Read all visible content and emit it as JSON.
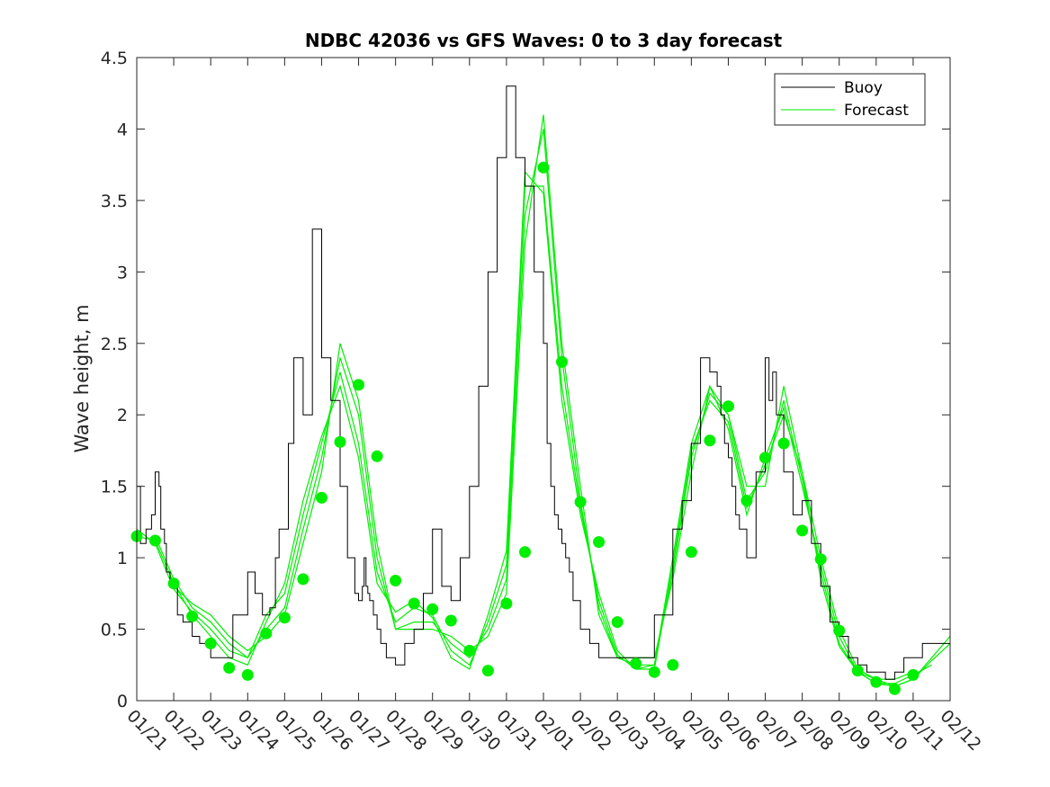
{
  "chart_data": {
    "type": "line",
    "title": "NDBC 42036 vs GFS Waves: 0 to 3 day forecast",
    "xlabel": "",
    "ylabel": "Wave height, m",
    "xlim": [
      0,
      22
    ],
    "ylim": [
      0,
      4.5
    ],
    "yticks": [
      0,
      0.5,
      1,
      1.5,
      2,
      2.5,
      3,
      3.5,
      4,
      4.5
    ],
    "ytick_labels": [
      "0",
      "0.5",
      "1",
      "1.5",
      "2",
      "2.5",
      "3",
      "3.5",
      "4",
      "4.5"
    ],
    "xtick_labels": [
      "01/21",
      "01/22",
      "01/23",
      "01/24",
      "01/25",
      "01/26",
      "01/27",
      "01/28",
      "01/29",
      "01/30",
      "01/31",
      "02/01",
      "02/02",
      "02/03",
      "02/04",
      "02/05",
      "02/06",
      "02/07",
      "02/08",
      "02/09",
      "02/10",
      "02/11",
      "02/12"
    ],
    "grid": false,
    "legend_position": "top-right",
    "legend": [
      "Buoy",
      "Forecast"
    ],
    "colors": {
      "buoy": "#000000",
      "forecast": "#00ee00",
      "axis": "#262626"
    },
    "buoy": {
      "name": "Buoy",
      "x": [
        0,
        0.1,
        0.25,
        0.4,
        0.5,
        0.6,
        0.65,
        0.75,
        0.8,
        0.9,
        1.0,
        1.1,
        1.25,
        1.5,
        1.7,
        2.0,
        2.3,
        2.6,
        3.0,
        3.2,
        3.4,
        3.6,
        3.75,
        3.85,
        4.0,
        4.1,
        4.25,
        4.5,
        4.75,
        5.0,
        5.25,
        5.5,
        5.7,
        5.9,
        6.0,
        6.1,
        6.15,
        6.2,
        6.25,
        6.3,
        6.4,
        6.5,
        6.6,
        6.75,
        7.0,
        7.25,
        7.5,
        7.75,
        8.0,
        8.25,
        8.5,
        8.75,
        9.0,
        9.25,
        9.5,
        9.75,
        10.0,
        10.25,
        10.5,
        10.75,
        11.0,
        11.1,
        11.2,
        11.3,
        11.4,
        11.5,
        11.6,
        11.7,
        11.8,
        12.0,
        12.25,
        12.5,
        12.75,
        13.0,
        13.5,
        14.0,
        14.5,
        14.75,
        15.0,
        15.25,
        15.5,
        15.7,
        15.8,
        15.9,
        16.0,
        16.1,
        16.2,
        16.3,
        16.5,
        16.75,
        17.0,
        17.1,
        17.2,
        17.3,
        17.5,
        17.75,
        18.0,
        18.25,
        18.5,
        18.75,
        19.0,
        19.25,
        19.5,
        19.75,
        20.0,
        20.25,
        20.5,
        20.75,
        21.0,
        21.25,
        21.5,
        22.0
      ],
      "y": [
        1.5,
        1.1,
        1.2,
        1.3,
        1.6,
        1.5,
        1.2,
        1.1,
        0.9,
        0.8,
        0.8,
        0.6,
        0.55,
        0.45,
        0.4,
        0.3,
        0.3,
        0.6,
        0.9,
        0.75,
        0.6,
        0.65,
        1.0,
        1.2,
        1.2,
        1.8,
        2.4,
        2.0,
        3.3,
        2.4,
        2.1,
        1.5,
        1.0,
        0.75,
        0.7,
        0.8,
        1.0,
        0.8,
        0.75,
        0.7,
        0.6,
        0.5,
        0.4,
        0.3,
        0.25,
        0.4,
        0.5,
        0.75,
        1.2,
        0.8,
        0.7,
        1.0,
        1.5,
        2.2,
        3.0,
        3.8,
        4.3,
        3.8,
        3.6,
        3.0,
        2.5,
        1.8,
        1.5,
        1.3,
        1.2,
        1.1,
        1.0,
        0.9,
        0.7,
        0.5,
        0.4,
        0.3,
        0.3,
        0.3,
        0.3,
        0.6,
        1.2,
        1.4,
        1.8,
        2.4,
        2.3,
        2.2,
        2.0,
        1.8,
        1.7,
        1.5,
        1.3,
        1.2,
        1.0,
        1.6,
        2.4,
        2.1,
        2.3,
        2.0,
        1.6,
        1.3,
        1.4,
        1.1,
        0.8,
        0.55,
        0.45,
        0.3,
        0.25,
        0.2,
        0.2,
        0.15,
        0.2,
        0.3,
        0.3,
        0.4,
        0.4,
        0.5
      ]
    },
    "forecast": {
      "name": "Forecast",
      "runs": [
        {
          "x": [
            0,
            0.5,
            1,
            1.5,
            2,
            2.5,
            3,
            3.5,
            4,
            4.5,
            5,
            5.5,
            6,
            6.5,
            7,
            7.5,
            8,
            8.5,
            9,
            9.5,
            10,
            10.5,
            11,
            11.5,
            12,
            12.5,
            13,
            13.5,
            14,
            14.5,
            15,
            15.5,
            16,
            16.5,
            17,
            17.5,
            18,
            18.5,
            19,
            19.5,
            20,
            20.5,
            21,
            21.5,
            22
          ],
          "y": [
            1.15,
            1.12,
            0.82,
            0.6,
            0.45,
            0.3,
            0.25,
            0.55,
            0.82,
            1.4,
            1.85,
            2.2,
            1.7,
            0.82,
            0.62,
            0.7,
            0.58,
            0.3,
            0.22,
            0.6,
            1.05,
            3.7,
            3.55,
            2.1,
            1.3,
            0.75,
            0.35,
            0.22,
            0.22,
            0.95,
            1.75,
            2.1,
            1.95,
            1.35,
            1.65,
            2.0,
            1.6,
            1.0,
            0.5,
            0.22,
            0.15,
            0.1,
            0.15,
            0.3,
            0.45
          ]
        },
        {
          "x": [
            0,
            0.5,
            1,
            1.5,
            2,
            2.5,
            3,
            3.5,
            4,
            4.5,
            5,
            5.5,
            6,
            6.5,
            7,
            7.5,
            8,
            8.5,
            9,
            9.5,
            10,
            10.5,
            11,
            11.5,
            12,
            12.5,
            13,
            13.5,
            14,
            14.5,
            15,
            15.5,
            16,
            16.5,
            17,
            17.5,
            18,
            18.5,
            19,
            19.5,
            20,
            20.5,
            21,
            21.5,
            22
          ],
          "y": [
            1.2,
            1.1,
            0.78,
            0.62,
            0.5,
            0.35,
            0.3,
            0.6,
            0.75,
            1.3,
            1.8,
            2.3,
            1.8,
            0.9,
            0.55,
            0.65,
            0.6,
            0.35,
            0.25,
            0.55,
            0.95,
            3.6,
            3.6,
            2.2,
            1.35,
            0.7,
            0.32,
            0.22,
            0.25,
            1.0,
            1.8,
            2.2,
            1.9,
            1.3,
            1.7,
            2.05,
            1.5,
            0.95,
            0.45,
            0.2,
            0.12,
            0.1,
            0.15,
            0.28,
            0.4
          ]
        },
        {
          "x": [
            0.5,
            1,
            1.5,
            2,
            2.5,
            3,
            3.5,
            4,
            4.5,
            5,
            5.5,
            6,
            6.5,
            7,
            7.5,
            8,
            8.5,
            9,
            9.5,
            10,
            10.5,
            11,
            11.5,
            12,
            12.5,
            13,
            13.5,
            14,
            14.5,
            15,
            15.5,
            16,
            16.5,
            17,
            17.5,
            18,
            18.5,
            19,
            19.5,
            20,
            20.5,
            21,
            21.5
          ],
          "y": [
            1.15,
            0.85,
            0.65,
            0.55,
            0.4,
            0.3,
            0.5,
            0.65,
            1.2,
            1.7,
            2.4,
            2.0,
            1.0,
            0.5,
            0.55,
            0.55,
            0.4,
            0.3,
            0.5,
            0.85,
            3.4,
            4.0,
            2.4,
            1.4,
            0.65,
            0.3,
            0.25,
            0.25,
            0.9,
            1.7,
            2.15,
            2.0,
            1.4,
            1.6,
            2.1,
            1.55,
            0.9,
            0.4,
            0.2,
            0.12,
            0.12,
            0.18,
            0.25
          ]
        },
        {
          "x": [
            1,
            1.5,
            2,
            2.5,
            3,
            3.5,
            4,
            4.5,
            5,
            5.5,
            6,
            6.5,
            7,
            7.5,
            8,
            8.5,
            9,
            9.5,
            10,
            10.5,
            11,
            11.5,
            12,
            12.5,
            13,
            13.5,
            14,
            14.5,
            15,
            15.5,
            16,
            16.5,
            17,
            17.5,
            18,
            18.5,
            19,
            19.5,
            20,
            20.5,
            21
          ],
          "y": [
            0.8,
            0.68,
            0.6,
            0.45,
            0.35,
            0.45,
            0.6,
            1.1,
            1.6,
            2.5,
            2.1,
            1.1,
            0.5,
            0.5,
            0.5,
            0.45,
            0.35,
            0.45,
            0.75,
            3.2,
            4.1,
            2.5,
            1.5,
            0.6,
            0.3,
            0.3,
            0.3,
            0.85,
            1.6,
            2.2,
            2.0,
            1.5,
            1.5,
            2.2,
            1.6,
            0.85,
            0.38,
            0.2,
            0.15,
            0.15,
            0.2
          ]
        }
      ],
      "markers": {
        "x": [
          0,
          0.5,
          1,
          1.5,
          2,
          2.5,
          3,
          3.5,
          4,
          4.5,
          5,
          5.5,
          6,
          6.5,
          7,
          7.5,
          8,
          8.5,
          9,
          9.5,
          10,
          10.5,
          11,
          11.5,
          12,
          12.5,
          13,
          13.5,
          14,
          14.5,
          15,
          15.5,
          16,
          16.5,
          17,
          17.5,
          18,
          18.5,
          19,
          19.5,
          20,
          20.5,
          21
        ],
        "y": [
          1.15,
          1.12,
          0.82,
          0.59,
          0.4,
          0.23,
          0.18,
          0.47,
          0.58,
          0.85,
          1.42,
          1.81,
          2.21,
          1.71,
          0.84,
          0.68,
          0.64,
          0.56,
          0.35,
          0.21,
          0.68,
          1.04,
          3.73,
          2.37,
          1.39,
          1.11,
          0.55,
          0.26,
          0.2,
          0.25,
          1.04,
          1.82,
          2.06,
          1.4,
          1.7,
          1.8,
          1.19,
          0.99,
          0.49,
          0.21,
          0.13,
          0.08,
          0.18
        ]
      }
    }
  }
}
